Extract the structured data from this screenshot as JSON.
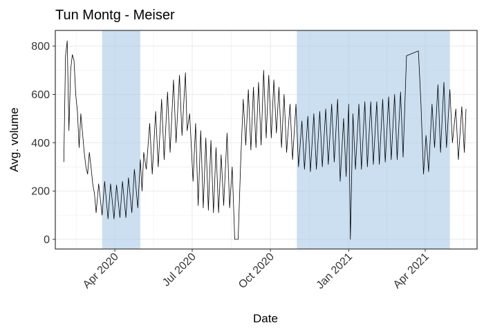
{
  "chart_data": {
    "type": "line",
    "title": "Tun Montg - Meiser",
    "xlabel": "Date",
    "ylabel": "Avg. volume",
    "ylim": [
      -40,
      865
    ],
    "xlim": [
      "2020-01-22",
      "2021-06-01"
    ],
    "y_ticks": [
      0,
      200,
      400,
      600,
      800
    ],
    "x_ticks": [
      {
        "date": "2020-04-01",
        "label": "Apr 2020"
      },
      {
        "date": "2020-07-01",
        "label": "Jul 2020"
      },
      {
        "date": "2020-10-01",
        "label": "Oct 2020"
      },
      {
        "date": "2021-01-01",
        "label": "Jan 2021"
      },
      {
        "date": "2021-04-01",
        "label": "Apr 2021"
      }
    ],
    "shaded_periods": [
      {
        "start": "2020-03-17",
        "end": "2020-05-01"
      },
      {
        "start": "2020-11-01",
        "end": "2021-04-30"
      }
    ],
    "grid": true,
    "colors": {
      "line": "#000000",
      "shade": "#a9c9e6",
      "grid": "#ebebeb",
      "panel_border": "#333333"
    },
    "series": [
      {
        "points": [
          [
            "2020-02-01",
            320
          ],
          [
            "2020-02-03",
            760
          ],
          [
            "2020-02-05",
            822
          ],
          [
            "2020-02-07",
            450
          ],
          [
            "2020-02-09",
            700
          ],
          [
            "2020-02-11",
            765
          ],
          [
            "2020-02-13",
            740
          ],
          [
            "2020-02-15",
            600
          ],
          [
            "2020-02-17",
            530
          ],
          [
            "2020-02-19",
            380
          ],
          [
            "2020-02-21",
            520
          ],
          [
            "2020-02-23",
            440
          ],
          [
            "2020-02-25",
            360
          ],
          [
            "2020-02-27",
            300
          ],
          [
            "2020-02-29",
            270
          ],
          [
            "2020-03-02",
            360
          ],
          [
            "2020-03-04",
            300
          ],
          [
            "2020-03-06",
            230
          ],
          [
            "2020-03-08",
            190
          ],
          [
            "2020-03-10",
            110
          ],
          [
            "2020-03-13",
            230
          ],
          [
            "2020-03-17",
            100
          ],
          [
            "2020-03-20",
            240
          ],
          [
            "2020-03-24",
            85
          ],
          [
            "2020-03-27",
            230
          ],
          [
            "2020-03-31",
            85
          ],
          [
            "2020-04-03",
            225
          ],
          [
            "2020-04-07",
            90
          ],
          [
            "2020-04-10",
            240
          ],
          [
            "2020-04-14",
            90
          ],
          [
            "2020-04-17",
            255
          ],
          [
            "2020-04-21",
            110
          ],
          [
            "2020-04-24",
            290
          ],
          [
            "2020-04-28",
            130
          ],
          [
            "2020-05-01",
            330
          ],
          [
            "2020-05-03",
            200
          ],
          [
            "2020-05-05",
            360
          ],
          [
            "2020-05-08",
            290
          ],
          [
            "2020-05-12",
            480
          ],
          [
            "2020-05-15",
            270
          ],
          [
            "2020-05-19",
            530
          ],
          [
            "2020-05-22",
            300
          ],
          [
            "2020-05-26",
            580
          ],
          [
            "2020-05-29",
            330
          ],
          [
            "2020-06-02",
            610
          ],
          [
            "2020-06-05",
            360
          ],
          [
            "2020-06-09",
            660
          ],
          [
            "2020-06-12",
            400
          ],
          [
            "2020-06-16",
            680
          ],
          [
            "2020-06-19",
            430
          ],
          [
            "2020-06-23",
            690
          ],
          [
            "2020-06-25",
            450
          ],
          [
            "2020-06-28",
            520
          ],
          [
            "2020-07-02",
            240
          ],
          [
            "2020-07-05",
            480
          ],
          [
            "2020-07-08",
            140
          ],
          [
            "2020-07-11",
            450
          ],
          [
            "2020-07-14",
            130
          ],
          [
            "2020-07-17",
            420
          ],
          [
            "2020-07-20",
            120
          ],
          [
            "2020-07-23",
            410
          ],
          [
            "2020-07-26",
            110
          ],
          [
            "2020-07-29",
            380
          ],
          [
            "2020-08-01",
            110
          ],
          [
            "2020-08-04",
            350
          ],
          [
            "2020-08-07",
            140
          ],
          [
            "2020-08-11",
            440
          ],
          [
            "2020-08-14",
            130
          ],
          [
            "2020-08-17",
            300
          ],
          [
            "2020-08-20",
            0
          ],
          [
            "2020-08-24",
            0
          ],
          [
            "2020-08-27",
            320
          ],
          [
            "2020-08-30",
            580
          ],
          [
            "2020-09-02",
            390
          ],
          [
            "2020-09-05",
            620
          ],
          [
            "2020-09-08",
            370
          ],
          [
            "2020-09-11",
            630
          ],
          [
            "2020-09-14",
            380
          ],
          [
            "2020-09-17",
            650
          ],
          [
            "2020-09-20",
            390
          ],
          [
            "2020-09-23",
            700
          ],
          [
            "2020-09-26",
            420
          ],
          [
            "2020-09-29",
            680
          ],
          [
            "2020-10-02",
            420
          ],
          [
            "2020-10-05",
            660
          ],
          [
            "2020-10-08",
            440
          ],
          [
            "2020-10-11",
            630
          ],
          [
            "2020-10-14",
            380
          ],
          [
            "2020-10-17",
            600
          ],
          [
            "2020-10-20",
            360
          ],
          [
            "2020-10-24",
            560
          ],
          [
            "2020-10-27",
            330
          ],
          [
            "2020-10-31",
            560
          ],
          [
            "2020-11-03",
            300
          ],
          [
            "2020-11-07",
            490
          ],
          [
            "2020-11-10",
            290
          ],
          [
            "2020-11-14",
            510
          ],
          [
            "2020-11-17",
            280
          ],
          [
            "2020-11-21",
            520
          ],
          [
            "2020-11-24",
            290
          ],
          [
            "2020-11-28",
            530
          ],
          [
            "2020-12-01",
            300
          ],
          [
            "2020-12-05",
            540
          ],
          [
            "2020-12-08",
            310
          ],
          [
            "2020-12-12",
            560
          ],
          [
            "2020-12-15",
            320
          ],
          [
            "2020-12-19",
            580
          ],
          [
            "2020-12-22",
            240
          ],
          [
            "2020-12-26",
            500
          ],
          [
            "2020-12-29",
            260
          ],
          [
            "2021-01-01",
            560
          ],
          [
            "2021-01-03",
            0
          ],
          [
            "2021-01-06",
            520
          ],
          [
            "2021-01-09",
            290
          ],
          [
            "2021-01-13",
            560
          ],
          [
            "2021-01-16",
            290
          ],
          [
            "2021-01-20",
            570
          ],
          [
            "2021-01-23",
            300
          ],
          [
            "2021-01-27",
            570
          ],
          [
            "2021-01-30",
            310
          ],
          [
            "2021-02-03",
            570
          ],
          [
            "2021-02-06",
            310
          ],
          [
            "2021-02-10",
            580
          ],
          [
            "2021-02-13",
            320
          ],
          [
            "2021-02-17",
            590
          ],
          [
            "2021-02-20",
            330
          ],
          [
            "2021-02-24",
            600
          ],
          [
            "2021-02-27",
            330
          ],
          [
            "2021-03-03",
            610
          ],
          [
            "2021-03-06",
            340
          ],
          [
            "2021-03-10",
            760
          ],
          [
            "2021-03-24",
            780
          ],
          [
            "2021-03-27",
            560
          ],
          [
            "2021-03-30",
            270
          ],
          [
            "2021-04-02",
            430
          ],
          [
            "2021-04-05",
            280
          ],
          [
            "2021-04-09",
            560
          ],
          [
            "2021-04-12",
            380
          ],
          [
            "2021-04-16",
            640
          ],
          [
            "2021-04-19",
            360
          ],
          [
            "2021-04-23",
            650
          ],
          [
            "2021-04-26",
            380
          ],
          [
            "2021-04-30",
            620
          ],
          [
            "2021-05-03",
            400
          ],
          [
            "2021-05-07",
            540
          ],
          [
            "2021-05-10",
            330
          ],
          [
            "2021-05-14",
            550
          ],
          [
            "2021-05-17",
            360
          ],
          [
            "2021-05-19",
            540
          ]
        ]
      }
    ]
  }
}
